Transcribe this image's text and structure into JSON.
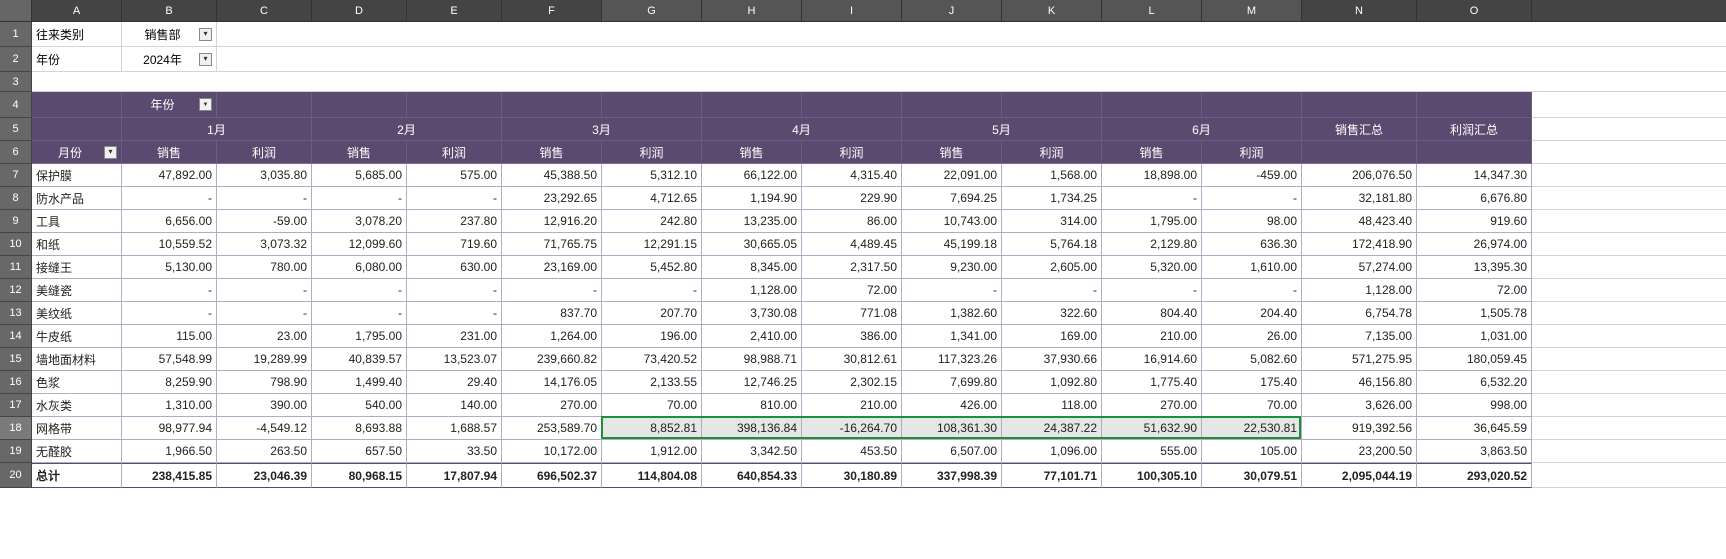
{
  "colors": {
    "header_bg": "#444444",
    "rownum_bg": "#686868",
    "pivot_bg": "#5a4a6f",
    "pivot_text": "#ffffff",
    "grid_line": "#d4d4d4",
    "pivot_line": "#b5a9c5",
    "selection_border": "#1a8f3c",
    "selection_fill": "#e6e6e6"
  },
  "col_widths": {
    "A": 90,
    "B": 95,
    "C": 95,
    "D": 95,
    "E": 95,
    "F": 100,
    "G": 100,
    "H": 100,
    "I": 100,
    "J": 100,
    "K": 100,
    "L": 100,
    "M": 100,
    "N": 115,
    "O": 115
  },
  "row_heights": {
    "1": 25,
    "2": 25,
    "3": 20,
    "4": 26,
    "5": 23,
    "6": 23,
    "7": 23,
    "8": 23,
    "9": 23,
    "10": 23,
    "11": 23,
    "12": 23,
    "13": 23,
    "14": 23,
    "15": 23,
    "16": 23,
    "17": 23,
    "18": 23,
    "19": 23,
    "20": 25
  },
  "columns": [
    "A",
    "B",
    "C",
    "D",
    "E",
    "F",
    "G",
    "H",
    "I",
    "J",
    "K",
    "L",
    "M",
    "N",
    "O"
  ],
  "filter_row1": {
    "label": "往来类别",
    "value": "销售部"
  },
  "filter_row2": {
    "label": "年份",
    "value": "2024年"
  },
  "pivot": {
    "year_field": "年份",
    "month_field": "月份",
    "months": [
      "1月",
      "2月",
      "3月",
      "4月",
      "5月",
      "6月"
    ],
    "measures": [
      "销售",
      "利润"
    ],
    "totals_cols": [
      "销售汇总",
      "利润汇总"
    ]
  },
  "rows": [
    {
      "label": "保护膜",
      "v": [
        "47,892.00",
        "3,035.80",
        "5,685.00",
        "575.00",
        "45,388.50",
        "5,312.10",
        "66,122.00",
        "4,315.40",
        "22,091.00",
        "1,568.00",
        "18,898.00",
        "-459.00",
        "206,076.50",
        "14,347.30"
      ]
    },
    {
      "label": "防水产品",
      "v": [
        "-",
        "-",
        "-",
        "-",
        "23,292.65",
        "4,712.65",
        "1,194.90",
        "229.90",
        "7,694.25",
        "1,734.25",
        "-",
        "-",
        "32,181.80",
        "6,676.80"
      ]
    },
    {
      "label": "工具",
      "v": [
        "6,656.00",
        "-59.00",
        "3,078.20",
        "237.80",
        "12,916.20",
        "242.80",
        "13,235.00",
        "86.00",
        "10,743.00",
        "314.00",
        "1,795.00",
        "98.00",
        "48,423.40",
        "919.60"
      ]
    },
    {
      "label": "和纸",
      "v": [
        "10,559.52",
        "3,073.32",
        "12,099.60",
        "719.60",
        "71,765.75",
        "12,291.15",
        "30,665.05",
        "4,489.45",
        "45,199.18",
        "5,764.18",
        "2,129.80",
        "636.30",
        "172,418.90",
        "26,974.00"
      ]
    },
    {
      "label": "接缝王",
      "v": [
        "5,130.00",
        "780.00",
        "6,080.00",
        "630.00",
        "23,169.00",
        "5,452.80",
        "8,345.00",
        "2,317.50",
        "9,230.00",
        "2,605.00",
        "5,320.00",
        "1,610.00",
        "57,274.00",
        "13,395.30"
      ]
    },
    {
      "label": "美缝瓷",
      "v": [
        "-",
        "-",
        "-",
        "-",
        "-",
        "-",
        "1,128.00",
        "72.00",
        "-",
        "-",
        "-",
        "-",
        "1,128.00",
        "72.00"
      ]
    },
    {
      "label": "美纹纸",
      "v": [
        "-",
        "-",
        "-",
        "-",
        "837.70",
        "207.70",
        "3,730.08",
        "771.08",
        "1,382.60",
        "322.60",
        "804.40",
        "204.40",
        "6,754.78",
        "1,505.78"
      ]
    },
    {
      "label": "牛皮纸",
      "v": [
        "115.00",
        "23.00",
        "1,795.00",
        "231.00",
        "1,264.00",
        "196.00",
        "2,410.00",
        "386.00",
        "1,341.00",
        "169.00",
        "210.00",
        "26.00",
        "7,135.00",
        "1,031.00"
      ]
    },
    {
      "label": "墙地面材料",
      "v": [
        "57,548.99",
        "19,289.99",
        "40,839.57",
        "13,523.07",
        "239,660.82",
        "73,420.52",
        "98,988.71",
        "30,812.61",
        "117,323.26",
        "37,930.66",
        "16,914.60",
        "5,082.60",
        "571,275.95",
        "180,059.45"
      ]
    },
    {
      "label": "色浆",
      "v": [
        "8,259.90",
        "798.90",
        "1,499.40",
        "29.40",
        "14,176.05",
        "2,133.55",
        "12,746.25",
        "2,302.15",
        "7,699.80",
        "1,092.80",
        "1,775.40",
        "175.40",
        "46,156.80",
        "6,532.20"
      ]
    },
    {
      "label": "水灰类",
      "v": [
        "1,310.00",
        "390.00",
        "540.00",
        "140.00",
        "270.00",
        "70.00",
        "810.00",
        "210.00",
        "426.00",
        "118.00",
        "270.00",
        "70.00",
        "3,626.00",
        "998.00"
      ]
    },
    {
      "label": "网格带",
      "v": [
        "98,977.94",
        "-4,549.12",
        "8,693.88",
        "1,688.57",
        "253,589.70",
        "8,852.81",
        "398,136.84",
        "-16,264.70",
        "108,361.30",
        "24,387.22",
        "51,632.90",
        "22,530.81",
        "919,392.56",
        "36,645.59"
      ]
    },
    {
      "label": "无醛胶",
      "v": [
        "1,966.50",
        "263.50",
        "657.50",
        "33.50",
        "10,172.00",
        "1,912.00",
        "3,342.50",
        "453.50",
        "6,507.00",
        "1,096.00",
        "555.00",
        "105.00",
        "23,200.50",
        "3,863.50"
      ]
    }
  ],
  "totals": {
    "label": "总计",
    "v": [
      "238,415.85",
      "23,046.39",
      "80,968.15",
      "17,807.94",
      "696,502.37",
      "114,804.08",
      "640,854.33",
      "30,180.89",
      "337,998.39",
      "77,101.71",
      "100,305.10",
      "30,079.51",
      "2,095,044.19",
      "293,020.52"
    ]
  },
  "selection": {
    "row": 18,
    "start_col": "G",
    "end_col": "M"
  }
}
